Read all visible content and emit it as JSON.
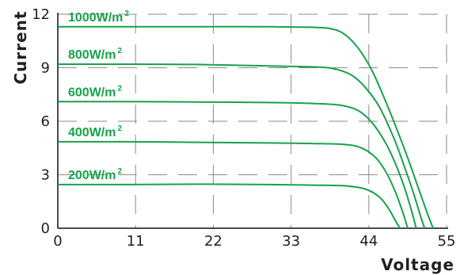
{
  "chart_data": {
    "type": "line",
    "title": "",
    "xlabel": "Voltage",
    "ylabel": "Current",
    "xlim": [
      0,
      55
    ],
    "ylim": [
      0,
      12
    ],
    "xticks": [
      0,
      11,
      22,
      33,
      44,
      55
    ],
    "yticks": [
      0,
      3,
      6,
      9,
      12
    ],
    "grid": "dashed",
    "line_color": "#16a34a",
    "label_color": "#16a34a",
    "series": [
      {
        "name": "1000W/m",
        "sup": "2",
        "x": [
          0,
          10,
          20,
          30,
          36,
          38.5,
          40.5,
          42.5,
          44.5,
          46.5,
          48.5,
          50,
          51.5,
          52.5,
          53.1
        ],
        "y": [
          11.3,
          11.3,
          11.3,
          11.3,
          11.27,
          11.2,
          10.9,
          10.1,
          8.8,
          7.0,
          5.0,
          3.4,
          1.7,
          0.6,
          0
        ]
      },
      {
        "name": "800W/m",
        "sup": "2",
        "x": [
          0,
          10,
          20,
          30,
          36,
          39,
          41.5,
          43.5,
          45.5,
          47.5,
          49,
          50.3,
          51.3,
          51.9
        ],
        "y": [
          9.2,
          9.2,
          9.18,
          9.1,
          9.05,
          8.95,
          8.6,
          7.9,
          6.8,
          5.1,
          3.5,
          2.0,
          0.7,
          0
        ]
      },
      {
        "name": "600W/m",
        "sup": "2",
        "x": [
          0,
          10,
          20,
          30,
          36,
          40,
          42.5,
          44.5,
          46.5,
          48,
          49.2,
          50.1,
          50.7
        ],
        "y": [
          7.1,
          7.1,
          7.08,
          7.05,
          7.0,
          6.9,
          6.6,
          5.9,
          4.7,
          3.4,
          2.1,
          0.9,
          0
        ]
      },
      {
        "name": "400W/m",
        "sup": "2",
        "x": [
          0,
          10,
          20,
          30,
          36,
          40.5,
          43,
          45,
          46.5,
          47.8,
          48.8,
          49.5
        ],
        "y": [
          4.85,
          4.85,
          4.82,
          4.78,
          4.75,
          4.7,
          4.5,
          3.95,
          3.1,
          2.0,
          0.9,
          0
        ]
      },
      {
        "name": "200W/m",
        "sup": "2",
        "x": [
          0,
          10,
          20,
          30,
          36,
          40.5,
          43.5,
          45.5,
          46.8,
          47.8,
          48.4
        ],
        "y": [
          2.45,
          2.45,
          2.47,
          2.45,
          2.42,
          2.38,
          2.2,
          1.75,
          1.1,
          0.4,
          0
        ]
      }
    ]
  }
}
